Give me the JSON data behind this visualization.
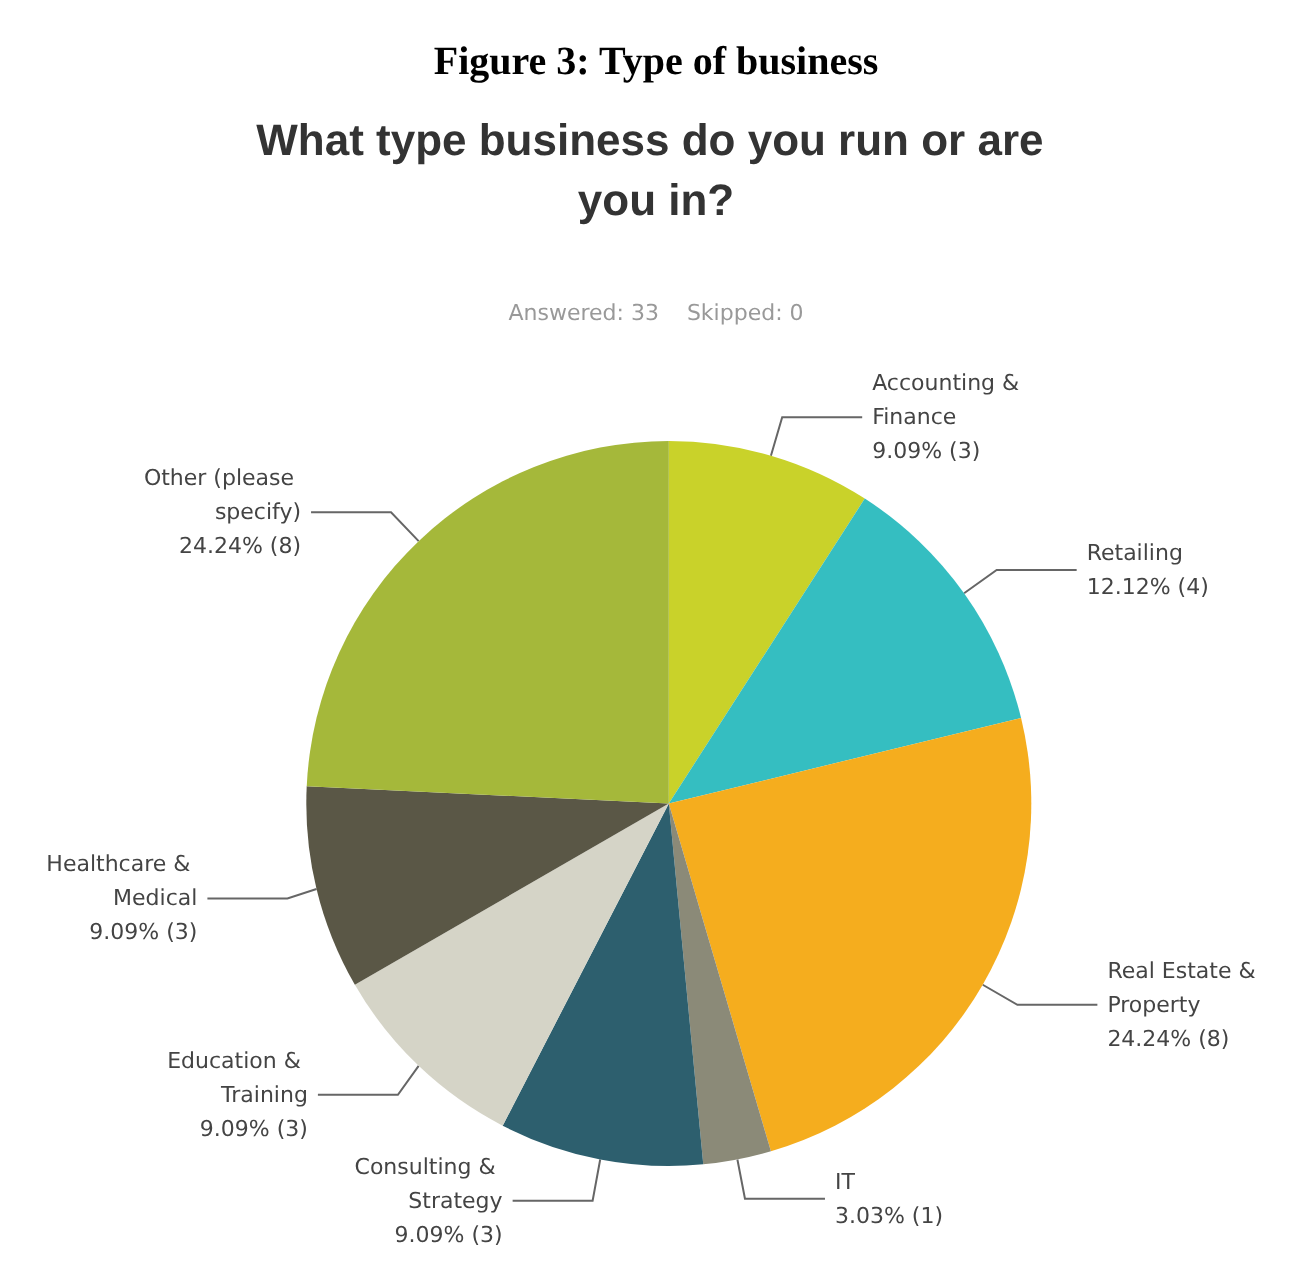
{
  "chart_data": {
    "type": "pie",
    "title": "Figure 3: Type of business",
    "subtitle": "What type business do you run or are you in?",
    "annotations": [
      "Answered: 33    Skipped: 0"
    ],
    "categories": [
      "Accounting & Finance",
      "Retailing",
      "Real Estate & Property",
      "IT",
      "Consulting & Strategy",
      "Education & Training",
      "Healthcare & Medical",
      "Other (please specify)"
    ],
    "values": [
      9.09,
      12.12,
      24.24,
      3.03,
      9.09,
      9.09,
      9.09,
      24.24
    ],
    "value_labels": [
      "9.09% (3)",
      "12.12% (4)",
      "24.24% (8)",
      "3.03% (1)",
      "9.09% (3)",
      "9.09% (3)",
      "9.09% (3)",
      "24.24% (8)"
    ],
    "colors": [
      "#c9d22a",
      "#35bec1",
      "#f5ad1e",
      "#8b8a78",
      "#2d5f6e",
      "#d5d4c7",
      "#5a5746",
      "#a5b83a"
    ]
  }
}
